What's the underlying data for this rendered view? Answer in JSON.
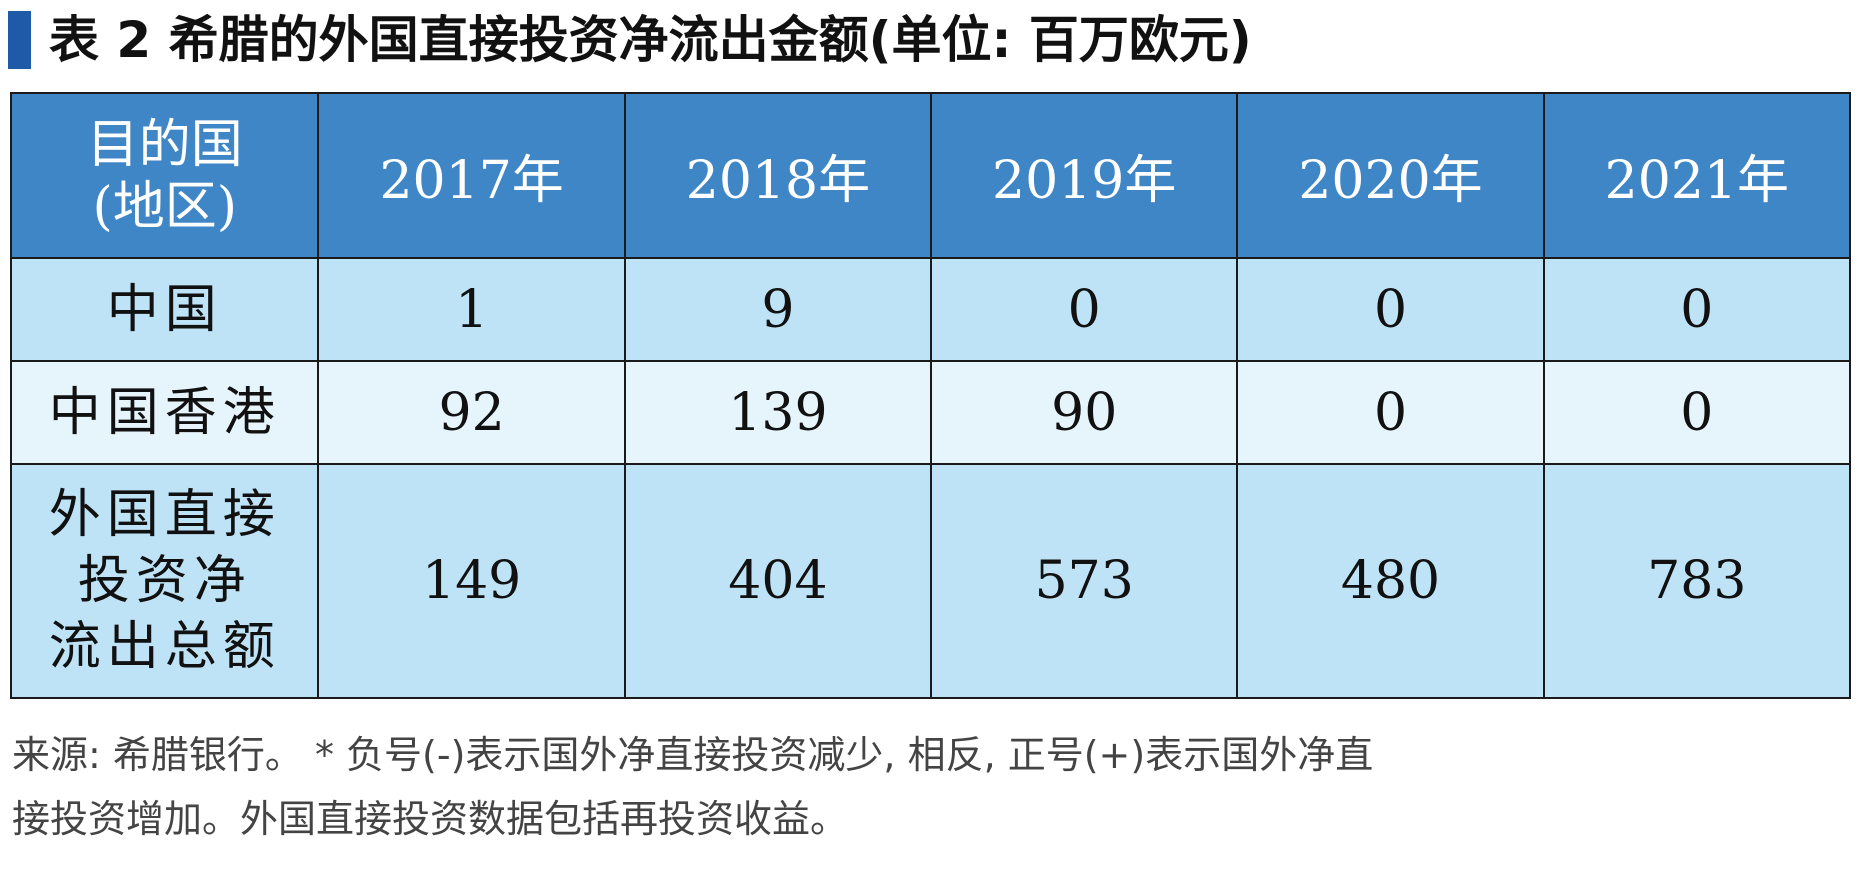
{
  "title": "表 2  希腊的外国直接投资净流出金额(单位: 百万欧元)",
  "table": {
    "header_first": [
      "目的国",
      "(地区)"
    ],
    "years": [
      "2017年",
      "2018年",
      "2019年",
      "2020年",
      "2021年"
    ],
    "rows": [
      {
        "label": [
          "中国"
        ],
        "values": [
          "1",
          "9",
          "0",
          "0",
          "0"
        ]
      },
      {
        "label": [
          "中国香港"
        ],
        "values": [
          "92",
          "139",
          "90",
          "0",
          "0"
        ]
      },
      {
        "label": [
          "外国直接",
          "投资净",
          "流出总额"
        ],
        "values": [
          "149",
          "404",
          "573",
          "480",
          "783"
        ]
      }
    ]
  },
  "footnote": {
    "line1": "来源: 希腊银行。 * 负号(-)表示国外净直接投资减少, 相反, 正号(+)表示国外净直",
    "line2": "接投资增加。外国直接投资数据包括再投资收益。"
  },
  "colors": {
    "accent_bar": "#1f5aa8",
    "header_bg": "#3f86c7",
    "row_dark": "#bfe3f6",
    "row_light": "#e6f4fc"
  }
}
